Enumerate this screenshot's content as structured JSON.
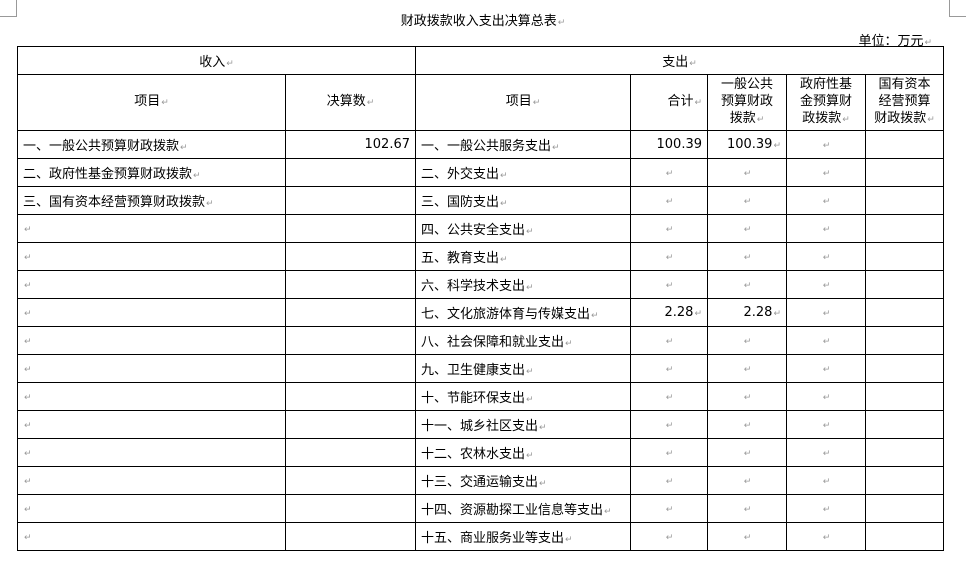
{
  "title": "财政拨款收入支出决算总表",
  "unit": "单位：万元",
  "headers": {
    "income": "收入",
    "expense": "支出",
    "item": "项目",
    "amount": "决算数",
    "exp_item": "项目",
    "total": "合计",
    "general": "一般公共预算财政拨款",
    "fund": "政府性基金预算财政拨款",
    "state": "国有资本经营预算财政拨款"
  },
  "income_rows": [
    {
      "item": "一、一般公共预算财政拨款",
      "amount": "102.67"
    },
    {
      "item": "二、政府性基金预算财政拨款",
      "amount": ""
    },
    {
      "item": "三、国有资本经营预算财政拨款",
      "amount": ""
    }
  ],
  "expense_rows": [
    {
      "item": "一、一般公共服务支出",
      "total": "100.39",
      "general": "100.39"
    },
    {
      "item": "二、外交支出",
      "total": "",
      "general": ""
    },
    {
      "item": "三、国防支出",
      "total": "",
      "general": ""
    },
    {
      "item": "四、公共安全支出",
      "total": "",
      "general": ""
    },
    {
      "item": "五、教育支出",
      "total": "",
      "general": ""
    },
    {
      "item": "六、科学技术支出",
      "total": "",
      "general": ""
    },
    {
      "item": "七、文化旅游体育与传媒支出",
      "total": "2.28",
      "general": "2.28"
    },
    {
      "item": "八、社会保障和就业支出",
      "total": "",
      "general": ""
    },
    {
      "item": "九、卫生健康支出",
      "total": "",
      "general": ""
    },
    {
      "item": "十、节能环保支出",
      "total": "",
      "general": ""
    },
    {
      "item": "十一、城乡社区支出",
      "total": "",
      "general": ""
    },
    {
      "item": "十二、农林水支出",
      "total": "",
      "general": ""
    },
    {
      "item": "十三、交通运输支出",
      "total": "",
      "general": ""
    },
    {
      "item": "十四、资源勘探工业信息等支出",
      "total": "",
      "general": ""
    },
    {
      "item": "十五、商业服务业等支出",
      "total": "",
      "general": ""
    }
  ]
}
